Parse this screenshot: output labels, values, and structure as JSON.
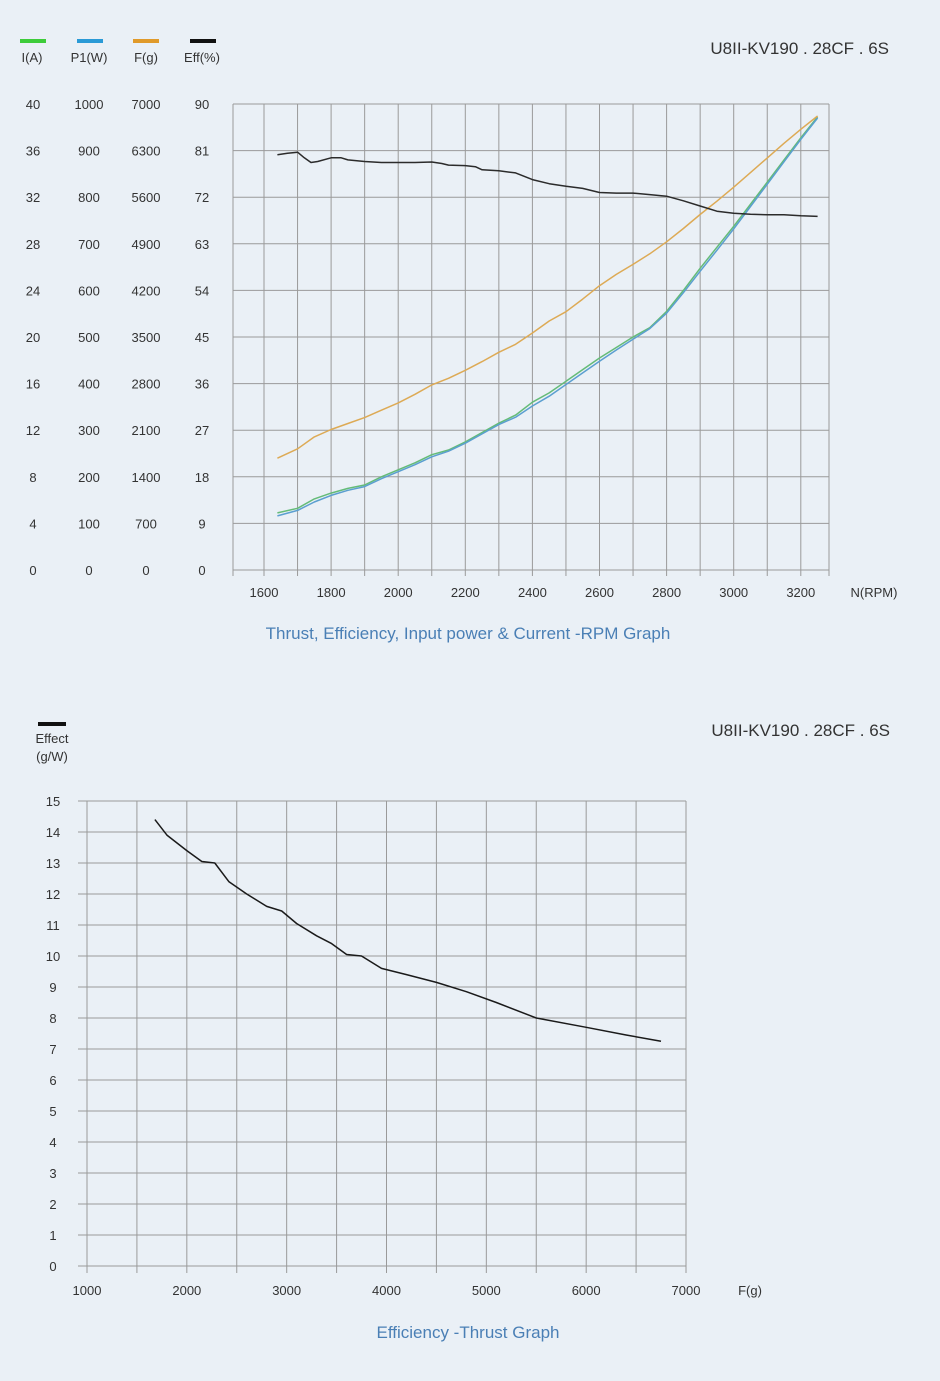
{
  "chart_data": [
    {
      "type": "line",
      "model": "U8II-KV190 . 28CF . 6S",
      "caption": "Thrust, Efficiency, Input power & Current -RPM Graph",
      "xlabel": "N(RPM)",
      "xlim": [
        1500,
        3300
      ],
      "x_ticks": [
        "1600",
        "1800",
        "2000",
        "2200",
        "2400",
        "2600",
        "2800",
        "3000",
        "3200"
      ],
      "y_axes": [
        {
          "label": "I(A)",
          "range": [
            0,
            40
          ],
          "ticks": [
            "40",
            "36",
            "32",
            "28",
            "24",
            "20",
            "16",
            "12",
            "8",
            "4",
            "0"
          ]
        },
        {
          "label": "P1(W)",
          "range": [
            0,
            1000
          ],
          "ticks": [
            "1000",
            "900",
            "800",
            "700",
            "600",
            "500",
            "400",
            "300",
            "200",
            "100",
            "0"
          ]
        },
        {
          "label": "F(g)",
          "range": [
            0,
            7000
          ],
          "ticks": [
            "7000",
            "6300",
            "5600",
            "4900",
            "4200",
            "3500",
            "2800",
            "2100",
            "1400",
            "700",
            "0"
          ]
        },
        {
          "label": "Eff(%)",
          "range": [
            0,
            90
          ],
          "ticks": [
            "90",
            "81",
            "72",
            "63",
            "54",
            "45",
            "36",
            "27",
            "18",
            "9",
            "0"
          ]
        }
      ],
      "legend": [
        {
          "name": "I(A)",
          "color": "#3dcc3a"
        },
        {
          "name": "P1(W)",
          "color": "#2a9ad6"
        },
        {
          "name": "F(g)",
          "color": "#e09a2a"
        },
        {
          "name": "Eff(%)",
          "color": "#111111"
        }
      ],
      "series": [
        {
          "name": "I(A)",
          "axis": 0,
          "color": "#64bb78",
          "points": [
            [
              1640,
              4.9
            ],
            [
              1700,
              5.3
            ],
            [
              1750,
              6.1
            ],
            [
              1800,
              6.6
            ],
            [
              1850,
              7.0
            ],
            [
              1900,
              7.3
            ],
            [
              1950,
              8.0
            ],
            [
              2000,
              8.6
            ],
            [
              2050,
              9.2
            ],
            [
              2100,
              9.9
            ],
            [
              2150,
              10.3
            ],
            [
              2200,
              11.0
            ],
            [
              2250,
              11.8
            ],
            [
              2300,
              12.6
            ],
            [
              2350,
              13.3
            ],
            [
              2400,
              14.4
            ],
            [
              2450,
              15.2
            ],
            [
              2500,
              16.2
            ],
            [
              2550,
              17.2
            ],
            [
              2600,
              18.2
            ],
            [
              2650,
              19.1
            ],
            [
              2700,
              20.0
            ],
            [
              2750,
              20.8
            ],
            [
              2800,
              22.2
            ],
            [
              2850,
              24.0
            ],
            [
              2900,
              25.9
            ],
            [
              2950,
              27.7
            ],
            [
              3000,
              29.5
            ],
            [
              3050,
              31.4
            ],
            [
              3100,
              33.3
            ],
            [
              3150,
              35.2
            ],
            [
              3200,
              37.1
            ],
            [
              3250,
              38.9
            ]
          ]
        },
        {
          "name": "P1(W)",
          "axis": 1,
          "color": "#5b9fd0",
          "points": [
            [
              1640,
              116
            ],
            [
              1700,
              128
            ],
            [
              1750,
              146
            ],
            [
              1800,
              160
            ],
            [
              1850,
              171
            ],
            [
              1900,
              179
            ],
            [
              1950,
              196
            ],
            [
              2000,
              211
            ],
            [
              2050,
              226
            ],
            [
              2100,
              243
            ],
            [
              2150,
              255
            ],
            [
              2200,
              272
            ],
            [
              2250,
              292
            ],
            [
              2300,
              312
            ],
            [
              2350,
              328
            ],
            [
              2400,
              352
            ],
            [
              2450,
              373
            ],
            [
              2500,
              398
            ],
            [
              2550,
              423
            ],
            [
              2600,
              448
            ],
            [
              2650,
              472
            ],
            [
              2700,
              495
            ],
            [
              2750,
              518
            ],
            [
              2800,
              551
            ],
            [
              2850,
              595
            ],
            [
              2900,
              641
            ],
            [
              2950,
              686
            ],
            [
              3000,
              732
            ],
            [
              3050,
              780
            ],
            [
              3100,
              828
            ],
            [
              3150,
              876
            ],
            [
              3200,
              924
            ],
            [
              3250,
              970
            ]
          ]
        },
        {
          "name": "F(g)",
          "axis": 2,
          "color": "#ddaa55",
          "points": [
            [
              1640,
              1680
            ],
            [
              1700,
              1820
            ],
            [
              1750,
              2000
            ],
            [
              1800,
              2110
            ],
            [
              1850,
              2200
            ],
            [
              1900,
              2290
            ],
            [
              1950,
              2400
            ],
            [
              2000,
              2510
            ],
            [
              2050,
              2640
            ],
            [
              2100,
              2780
            ],
            [
              2150,
              2880
            ],
            [
              2200,
              3000
            ],
            [
              2250,
              3130
            ],
            [
              2300,
              3270
            ],
            [
              2350,
              3390
            ],
            [
              2400,
              3560
            ],
            [
              2450,
              3740
            ],
            [
              2500,
              3880
            ],
            [
              2550,
              4070
            ],
            [
              2600,
              4270
            ],
            [
              2650,
              4440
            ],
            [
              2700,
              4590
            ],
            [
              2750,
              4750
            ],
            [
              2800,
              4930
            ],
            [
              2850,
              5130
            ],
            [
              2900,
              5340
            ],
            [
              2950,
              5540
            ],
            [
              3000,
              5750
            ],
            [
              3050,
              5970
            ],
            [
              3100,
              6190
            ],
            [
              3150,
              6410
            ],
            [
              3200,
              6620
            ],
            [
              3250,
              6820
            ]
          ]
        },
        {
          "name": "Eff(%)",
          "axis": 3,
          "color": "#2b2b2b",
          "points": [
            [
              1640,
              80.2
            ],
            [
              1670,
              80.5
            ],
            [
              1700,
              80.7
            ],
            [
              1720,
              79.6
            ],
            [
              1740,
              78.7
            ],
            [
              1760,
              78.9
            ],
            [
              1800,
              79.6
            ],
            [
              1830,
              79.6
            ],
            [
              1850,
              79.2
            ],
            [
              1900,
              78.9
            ],
            [
              1950,
              78.7
            ],
            [
              2000,
              78.7
            ],
            [
              2050,
              78.7
            ],
            [
              2100,
              78.8
            ],
            [
              2130,
              78.5
            ],
            [
              2150,
              78.2
            ],
            [
              2200,
              78.1
            ],
            [
              2230,
              77.9
            ],
            [
              2250,
              77.3
            ],
            [
              2300,
              77.1
            ],
            [
              2350,
              76.7
            ],
            [
              2400,
              75.4
            ],
            [
              2450,
              74.6
            ],
            [
              2500,
              74.1
            ],
            [
              2550,
              73.7
            ],
            [
              2600,
              72.9
            ],
            [
              2650,
              72.8
            ],
            [
              2700,
              72.8
            ],
            [
              2750,
              72.5
            ],
            [
              2800,
              72.2
            ],
            [
              2850,
              71.3
            ],
            [
              2900,
              70.3
            ],
            [
              2950,
              69.3
            ],
            [
              3000,
              68.9
            ],
            [
              3050,
              68.7
            ],
            [
              3100,
              68.6
            ],
            [
              3150,
              68.6
            ],
            [
              3200,
              68.4
            ],
            [
              3250,
              68.3
            ]
          ]
        }
      ]
    },
    {
      "type": "line",
      "model": "U8II-KV190 . 28CF . 6S",
      "caption": "Efficiency -Thrust Graph",
      "legend": [
        {
          "name": "Effect",
          "color": "#111111"
        }
      ],
      "ylabel": "Effect\n(g/W)",
      "xlabel": "F(g)",
      "xlim": [
        1000,
        7000
      ],
      "ylim": [
        0,
        15
      ],
      "x_ticks": [
        "1000",
        "2000",
        "3000",
        "4000",
        "5000",
        "6000",
        "7000"
      ],
      "y_ticks": [
        "15",
        "14",
        "13",
        "12",
        "11",
        "10",
        "9",
        "8",
        "7",
        "6",
        "5",
        "4",
        "3",
        "2",
        "1",
        "0"
      ],
      "series": [
        {
          "name": "Effect",
          "color": "#1a1a1a",
          "points": [
            [
              1680,
              14.4
            ],
            [
              1800,
              13.9
            ],
            [
              2000,
              13.4
            ],
            [
              2150,
              13.05
            ],
            [
              2280,
              13.0
            ],
            [
              2420,
              12.4
            ],
            [
              2600,
              12.0
            ],
            [
              2800,
              11.6
            ],
            [
              2950,
              11.45
            ],
            [
              3100,
              11.05
            ],
            [
              3300,
              10.65
            ],
            [
              3450,
              10.4
            ],
            [
              3600,
              10.05
            ],
            [
              3750,
              10.0
            ],
            [
              3950,
              9.6
            ],
            [
              4200,
              9.4
            ],
            [
              4500,
              9.15
            ],
            [
              4800,
              8.85
            ],
            [
              5100,
              8.5
            ],
            [
              5500,
              8.0
            ],
            [
              6000,
              7.7
            ],
            [
              6400,
              7.45
            ],
            [
              6750,
              7.25
            ]
          ]
        }
      ]
    }
  ]
}
